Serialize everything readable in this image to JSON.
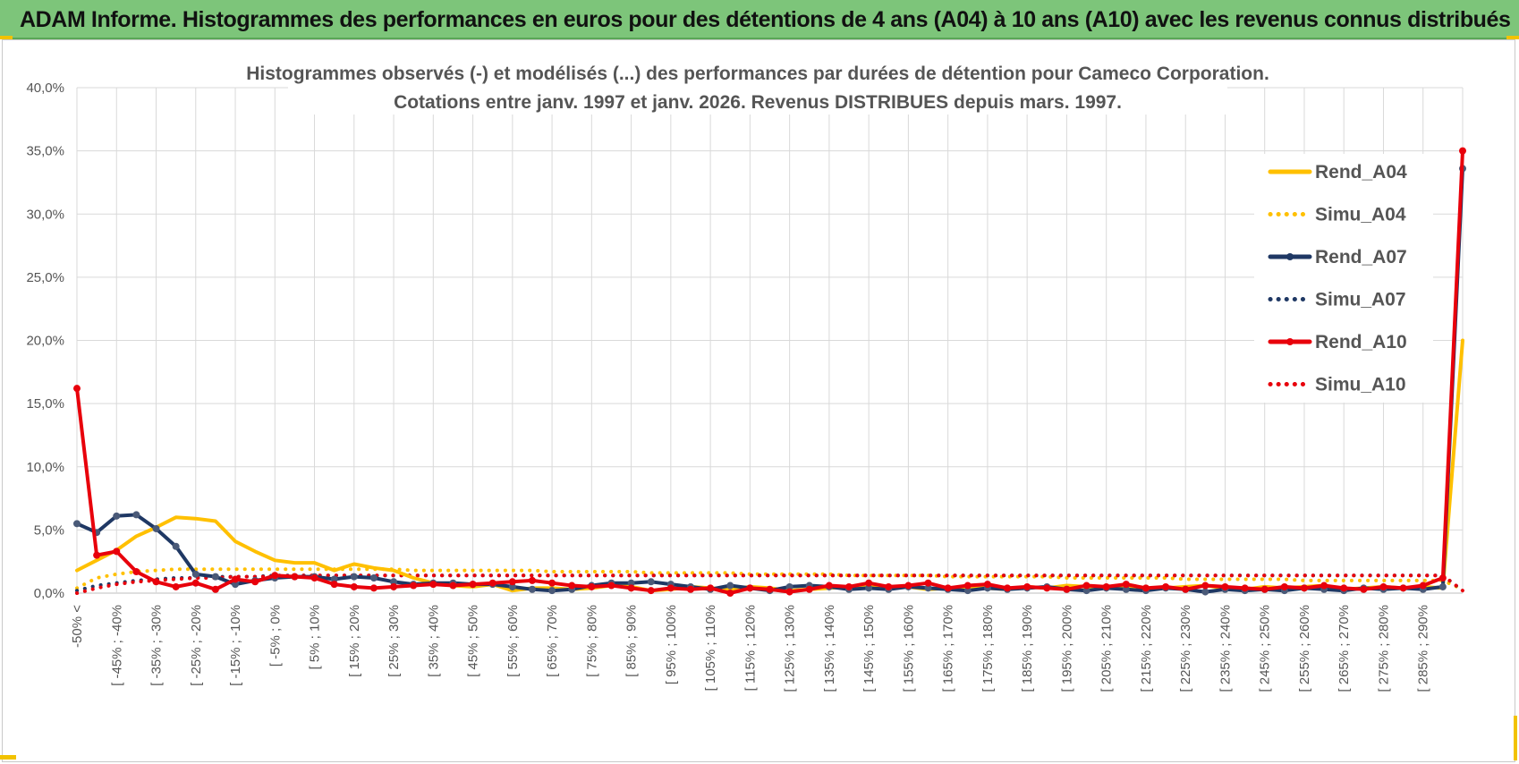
{
  "banner": {
    "title": "ADAM Informe. Histogrammes des performances en euros pour des détentions de 4 ans (A04) à 10 ans (A10) avec les revenus connus distribués"
  },
  "chart_data": {
    "type": "line",
    "title": [
      "Histogrammes observés (-) et modélisés (...) des performances par durées de détention pour Cameco Corporation.",
      "Cotations entre janv. 1997 et janv. 2026. Revenus DISTRIBUES depuis mars. 1997."
    ],
    "ylim": [
      0,
      40
    ],
    "yticks": [
      0,
      5,
      10,
      15,
      20,
      25,
      30,
      35,
      40
    ],
    "ytick_labels": [
      "0,0%",
      "5,0%",
      "10,0%",
      "15,0%",
      "20,0%",
      "25,0%",
      "30,0%",
      "35,0%",
      "40,0%"
    ],
    "xtick_labels": [
      "-50% <",
      "[ -45% ; -40%",
      "[ -35% ; -30%",
      "[ -25% ; -20%",
      "[ -15% ; -10%",
      "[ -5% ; 0%",
      "[ 5% ; 10%",
      "[ 15% ; 20%",
      "[ 25% ; 30%",
      "[ 35% ; 40%",
      "[ 45% ; 50%",
      "[ 55% ; 60%",
      "[ 65% ; 70%",
      "[ 75% ; 80%",
      "[ 85% ; 90%",
      "[ 95% ; 100%",
      "[ 105% ; 110%",
      "[ 115% ; 120%",
      "[ 125% ; 130%",
      "[ 135% ; 140%",
      "[ 145% ; 150%",
      "[ 155% ; 160%",
      "[ 165% ; 170%",
      "[ 175% ; 180%",
      "[ 185% ; 190%",
      "[ 195% ; 200%",
      "[ 205% ; 210%",
      "[ 215% ; 220%",
      "[ 225% ; 230%",
      "[ 235% ; 240%",
      "[ 245% ; 250%",
      "[ 255% ; 260%",
      "[ 265% ; 270%",
      "[ 275% ; 280%",
      "[ 285% ; 290%"
    ],
    "legend_position": "right",
    "series": [
      {
        "name": "Rend_A04",
        "style": "solid",
        "color": "#ffc000",
        "markers": false,
        "values": [
          1.8,
          2.6,
          3.4,
          4.5,
          5.2,
          6.0,
          5.9,
          5.7,
          4.1,
          3.3,
          2.6,
          2.4,
          2.4,
          1.8,
          2.3,
          2.0,
          1.8,
          1.2,
          0.8,
          0.6,
          0.5,
          0.7,
          0.2,
          0.4,
          0.4,
          0.3,
          0.4,
          0.6,
          0.5,
          0.2,
          0.3,
          0.5,
          0.4,
          0.3,
          0.5,
          0.4,
          0.2,
          0.3,
          0.4,
          0.5,
          0.6,
          0.4,
          0.5,
          0.3,
          0.4,
          0.5,
          0.4,
          0.3,
          0.5,
          0.4,
          0.6,
          0.5,
          0.4,
          0.5,
          0.3,
          0.4,
          0.5,
          0.6,
          0.4,
          0.3,
          0.5,
          0.4,
          0.5,
          0.6,
          0.3,
          0.4,
          0.5,
          0.4,
          0.5,
          0.4,
          20.0
        ]
      },
      {
        "name": "Simu_A04",
        "style": "dotted",
        "color": "#ffc000",
        "markers": false,
        "values": [
          0.4,
          1.2,
          1.5,
          1.7,
          1.8,
          1.9,
          1.9,
          1.9,
          1.9,
          1.9,
          1.9,
          1.9,
          1.9,
          1.9,
          1.9,
          1.9,
          1.9,
          1.8,
          1.8,
          1.8,
          1.8,
          1.8,
          1.8,
          1.8,
          1.7,
          1.7,
          1.7,
          1.7,
          1.7,
          1.6,
          1.6,
          1.6,
          1.6,
          1.6,
          1.5,
          1.5,
          1.5,
          1.5,
          1.5,
          1.4,
          1.4,
          1.4,
          1.4,
          1.4,
          1.3,
          1.3,
          1.3,
          1.3,
          1.3,
          1.3,
          1.2,
          1.2,
          1.2,
          1.2,
          1.2,
          1.2,
          1.1,
          1.1,
          1.1,
          1.1,
          1.1,
          1.1,
          1.0,
          1.0,
          1.0,
          1.0,
          1.0,
          1.0,
          1.0,
          1.0,
          0.3
        ]
      },
      {
        "name": "Rend_A07",
        "style": "solid",
        "color": "#1f3864",
        "markers": true,
        "values": [
          5.5,
          4.8,
          6.1,
          6.2,
          5.1,
          3.7,
          1.5,
          1.3,
          0.7,
          1.0,
          1.2,
          1.3,
          1.3,
          1.1,
          1.3,
          1.2,
          0.9,
          0.7,
          0.8,
          0.8,
          0.7,
          0.7,
          0.5,
          0.3,
          0.2,
          0.3,
          0.6,
          0.8,
          0.8,
          0.9,
          0.7,
          0.5,
          0.3,
          0.6,
          0.4,
          0.2,
          0.5,
          0.6,
          0.5,
          0.3,
          0.4,
          0.3,
          0.5,
          0.4,
          0.3,
          0.2,
          0.4,
          0.3,
          0.4,
          0.5,
          0.3,
          0.2,
          0.4,
          0.3,
          0.2,
          0.4,
          0.3,
          0.1,
          0.3,
          0.2,
          0.3,
          0.2,
          0.4,
          0.3,
          0.2,
          0.4,
          0.3,
          0.4,
          0.3,
          0.5,
          33.6
        ]
      },
      {
        "name": "Simu_A07",
        "style": "dotted",
        "color": "#1f3864",
        "markers": false,
        "values": [
          0.2,
          0.6,
          0.8,
          1.0,
          1.1,
          1.2,
          1.2,
          1.3,
          1.3,
          1.3,
          1.4,
          1.4,
          1.4,
          1.4,
          1.4,
          1.4,
          1.4,
          1.4,
          1.4,
          1.4,
          1.4,
          1.4,
          1.4,
          1.4,
          1.4,
          1.4,
          1.4,
          1.4,
          1.4,
          1.4,
          1.4,
          1.4,
          1.4,
          1.4,
          1.4,
          1.4,
          1.4,
          1.4,
          1.4,
          1.4,
          1.4,
          1.4,
          1.4,
          1.4,
          1.4,
          1.4,
          1.4,
          1.4,
          1.4,
          1.4,
          1.4,
          1.4,
          1.4,
          1.4,
          1.4,
          1.4,
          1.4,
          1.4,
          1.4,
          1.4,
          1.4,
          1.4,
          1.4,
          1.4,
          1.4,
          1.4,
          1.4,
          1.4,
          1.4,
          1.4,
          0.2
        ]
      },
      {
        "name": "Rend_A10",
        "style": "solid",
        "color": "#e8000b",
        "markers": true,
        "values": [
          16.2,
          3.0,
          3.3,
          1.7,
          0.9,
          0.5,
          0.8,
          0.3,
          1.1,
          0.9,
          1.4,
          1.3,
          1.2,
          0.7,
          0.5,
          0.4,
          0.5,
          0.6,
          0.7,
          0.6,
          0.7,
          0.8,
          0.9,
          1.0,
          0.8,
          0.6,
          0.5,
          0.6,
          0.4,
          0.2,
          0.4,
          0.3,
          0.4,
          0.0,
          0.4,
          0.3,
          0.1,
          0.3,
          0.6,
          0.5,
          0.8,
          0.5,
          0.6,
          0.8,
          0.4,
          0.6,
          0.7,
          0.4,
          0.5,
          0.4,
          0.3,
          0.6,
          0.5,
          0.7,
          0.4,
          0.5,
          0.3,
          0.6,
          0.5,
          0.4,
          0.3,
          0.5,
          0.4,
          0.6,
          0.4,
          0.3,
          0.5,
          0.4,
          0.6,
          1.2,
          35.0
        ]
      },
      {
        "name": "Simu_A10",
        "style": "dotted",
        "color": "#e8000b",
        "markers": false,
        "values": [
          0.0,
          0.4,
          0.7,
          0.9,
          1.0,
          1.1,
          1.2,
          1.2,
          1.3,
          1.3,
          1.3,
          1.4,
          1.4,
          1.4,
          1.4,
          1.4,
          1.4,
          1.4,
          1.4,
          1.4,
          1.4,
          1.4,
          1.4,
          1.4,
          1.4,
          1.4,
          1.4,
          1.4,
          1.4,
          1.4,
          1.4,
          1.4,
          1.4,
          1.4,
          1.4,
          1.4,
          1.4,
          1.4,
          1.4,
          1.4,
          1.4,
          1.4,
          1.4,
          1.4,
          1.4,
          1.4,
          1.4,
          1.4,
          1.4,
          1.4,
          1.4,
          1.4,
          1.4,
          1.4,
          1.4,
          1.4,
          1.4,
          1.4,
          1.4,
          1.4,
          1.4,
          1.4,
          1.4,
          1.4,
          1.4,
          1.4,
          1.4,
          1.4,
          1.4,
          1.4,
          0.2
        ]
      }
    ]
  }
}
